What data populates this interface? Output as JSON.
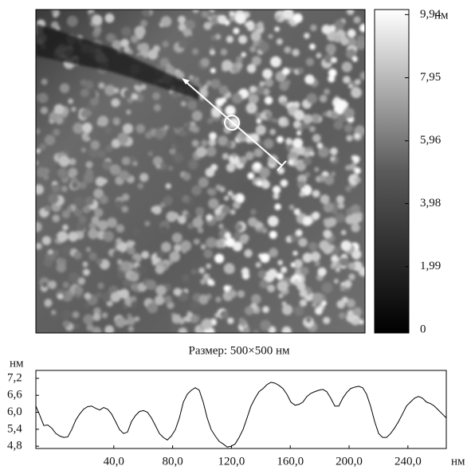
{
  "image_caption": "Размер: 500×500 нм",
  "colorbar": {
    "unit": "нм",
    "clim": [
      -0.1,
      10.1
    ],
    "ticks": [
      0,
      {
        "value": 1.99,
        "label": "1,99"
      },
      {
        "value": 3.98,
        "label": "3,98"
      },
      {
        "value": 5.96,
        "label": "5,96"
      },
      {
        "value": 7.95,
        "label": "7,95"
      },
      {
        "value": 9.94,
        "label": "9,94"
      }
    ]
  },
  "chart_data": {
    "type": "line",
    "y_label": "нм",
    "x_label": "нм",
    "x": [
      -13.0,
      -10.3,
      -7.6,
      -4.9,
      -2.2,
      0.6,
      3.3,
      6.0,
      8.7,
      11.4,
      14.1,
      16.8,
      19.5,
      22.2,
      24.9,
      27.7,
      30.4,
      33.1,
      35.8,
      38.5,
      41.2,
      43.9,
      46.6,
      49.3,
      52.0,
      54.8,
      57.5,
      60.2,
      62.9,
      65.6,
      68.3,
      71.0,
      73.7,
      76.4,
      79.1,
      81.9,
      84.6,
      87.3,
      90.0,
      92.7,
      95.4,
      98.1,
      100.8,
      103.5,
      106.2,
      109.0,
      111.7,
      114.4,
      117.1,
      119.8,
      122.5,
      125.2,
      127.9,
      130.6,
      133.3,
      136.1,
      138.8,
      141.5,
      144.2,
      146.9,
      149.6,
      152.3,
      155.0,
      157.7,
      160.4,
      163.2,
      165.9,
      168.6,
      171.3,
      174.0,
      176.7,
      179.4,
      182.1,
      184.8,
      187.5,
      190.3,
      193.0,
      195.7,
      198.4,
      201.1,
      203.8,
      206.5,
      209.2,
      211.9,
      214.6,
      217.4,
      220.1,
      222.8,
      225.5,
      228.2,
      230.9,
      233.6,
      236.3,
      239.0,
      241.7,
      244.5,
      247.2,
      249.9,
      252.6,
      255.3,
      258.0,
      260.7,
      263.4,
      266.1
    ],
    "values": [
      6.22,
      5.89,
      5.53,
      5.55,
      5.44,
      5.25,
      5.16,
      5.11,
      5.13,
      5.39,
      5.72,
      5.94,
      6.11,
      6.2,
      6.22,
      6.14,
      6.08,
      6.17,
      6.11,
      5.94,
      5.67,
      5.39,
      5.25,
      5.3,
      5.67,
      5.89,
      6.03,
      6.06,
      6.0,
      5.8,
      5.53,
      5.25,
      5.11,
      5.02,
      5.16,
      5.39,
      5.8,
      6.36,
      6.64,
      6.78,
      6.87,
      6.78,
      6.36,
      5.8,
      5.39,
      5.16,
      4.97,
      4.88,
      4.77,
      4.8,
      4.88,
      5.11,
      5.39,
      5.8,
      6.22,
      6.5,
      6.73,
      6.84,
      6.98,
      7.06,
      7.03,
      6.95,
      6.84,
      6.64,
      6.36,
      6.25,
      6.28,
      6.36,
      6.56,
      6.67,
      6.73,
      6.78,
      6.81,
      6.73,
      6.5,
      6.22,
      6.22,
      6.5,
      6.7,
      6.84,
      6.89,
      6.92,
      6.87,
      6.64,
      6.22,
      5.67,
      5.25,
      5.11,
      5.11,
      5.25,
      5.44,
      5.67,
      5.94,
      6.22,
      6.36,
      6.5,
      6.56,
      6.5,
      6.36,
      6.31,
      6.22,
      6.08,
      5.94,
      5.8
    ],
    "color": "#000000",
    "xlim": [
      -13.0,
      266.1
    ],
    "xticks": [
      {
        "value": 40,
        "label": "40,0"
      },
      {
        "value": 80,
        "label": "80,0"
      },
      {
        "value": 120,
        "label": "120,0"
      },
      {
        "value": 160,
        "label": "160,0"
      },
      {
        "value": 200,
        "label": "200,0"
      },
      {
        "value": 240,
        "label": "240,0"
      }
    ],
    "ylim": [
      4.72,
      7.48
    ],
    "yticks": [
      {
        "value": 4.8,
        "label": "4,8"
      },
      {
        "value": 5.4,
        "label": "5,4"
      },
      {
        "value": 6.0,
        "label": "6,0"
      },
      {
        "value": 6.6,
        "label": "6,6"
      },
      {
        "value": 7.2,
        "label": "7,2"
      }
    ]
  }
}
